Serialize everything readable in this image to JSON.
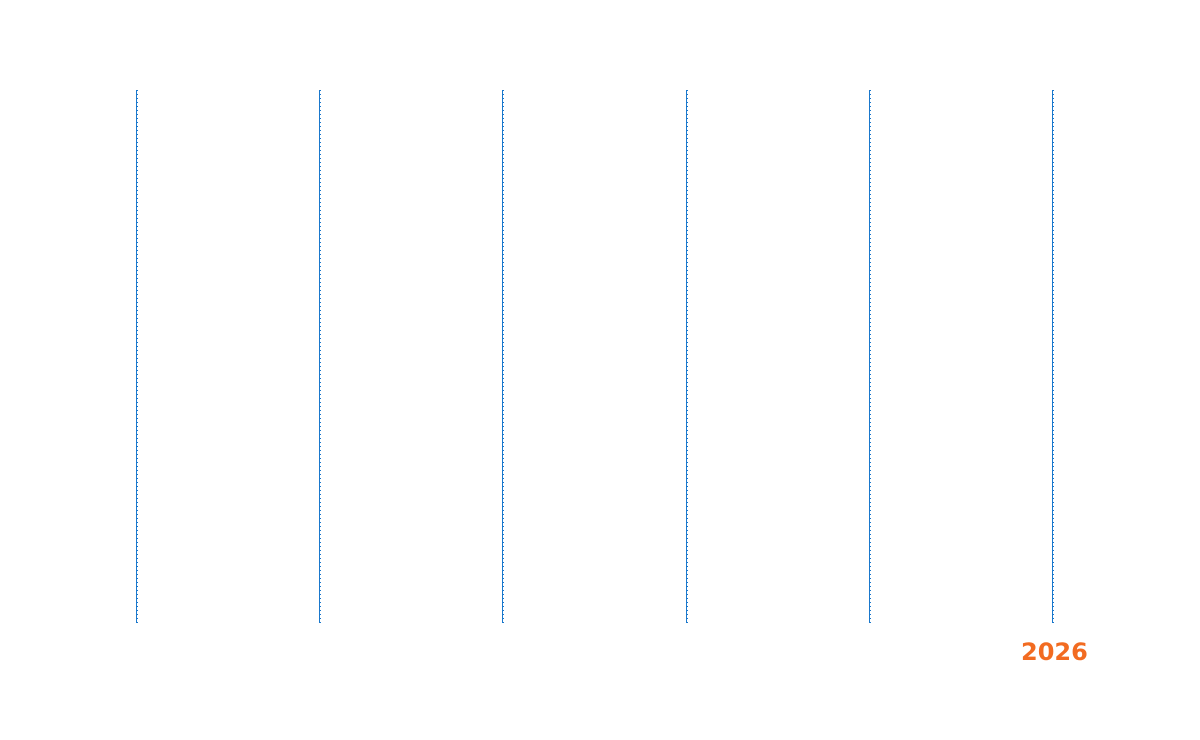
{
  "colors": {
    "line": "#1a78cc",
    "year": "#f26b21"
  },
  "timeline": {
    "column_count": 6,
    "year_label": "2026"
  }
}
